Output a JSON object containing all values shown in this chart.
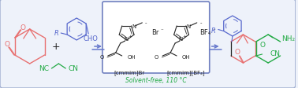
{
  "bg": "#eef2fa",
  "outer_border": "#a0aed0",
  "inner_border": "#7080c0",
  "inner_bg": "#ffffff",
  "red": "#e87070",
  "blue": "#5566cc",
  "green": "#22aa44",
  "black": "#222222",
  "arrow": "#6678cc",
  "title": "Solvent-free, 110 °C",
  "title_color": "#22aa44",
  "label1": "[cmmim]Br",
  "label2": "[cmmim][BF₄]",
  "label_fs": 5.0,
  "fig_w": 3.78,
  "fig_h": 1.13,
  "dpi": 100
}
